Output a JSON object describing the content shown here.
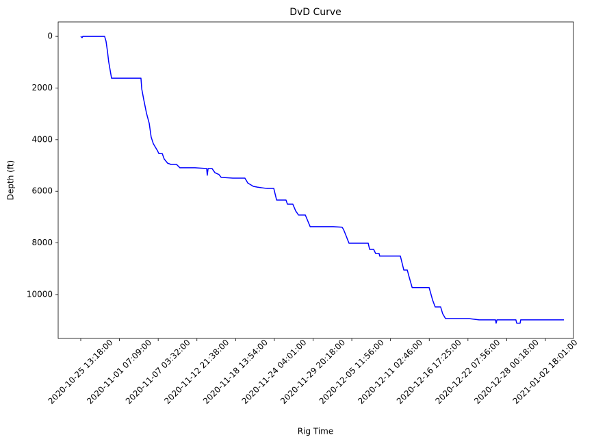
{
  "chart_data": {
    "type": "line",
    "title": "DvD Curve",
    "x_label": "Rig Time",
    "y_label": "Depth (ft)",
    "color": "#0000ff",
    "grid": false,
    "y_inverted": true,
    "x": [
      "2020-10-25 13:18",
      "2020-10-25 19:00",
      "2020-10-25 22:00",
      "2020-10-29 17:00",
      "2020-10-29 23:00",
      "2020-10-30 05:00",
      "2020-10-30 10:00",
      "2020-10-30 22:00",
      "2020-11-04 13:00",
      "2020-11-04 16:00",
      "2020-11-04 23:00",
      "2020-11-05 09:00",
      "2020-11-05 19:00",
      "2020-11-06 02:00",
      "2020-11-06 10:00",
      "2020-11-07 01:00",
      "2020-11-07 06:00",
      "2020-11-07 18:00",
      "2020-11-08 01:00",
      "2020-11-08 13:00",
      "2020-11-09 01:00",
      "2020-11-09 21:00",
      "2020-11-10 09:00",
      "2020-11-12 15:00",
      "2020-11-14 08:00",
      "2020-11-14 10:00",
      "2020-11-14 13:00",
      "2020-11-15 03:00",
      "2020-11-15 13:00",
      "2020-11-16 03:00",
      "2020-11-16 11:00",
      "2020-11-18 04:00",
      "2020-11-19 22:00",
      "2020-11-20 08:00",
      "2020-11-21 03:00",
      "2020-11-21 17:00",
      "2020-11-23 02:00",
      "2020-11-24 02:00",
      "2020-11-24 12:00",
      "2020-11-25 21:00",
      "2020-11-26 02:00",
      "2020-11-26 21:00",
      "2020-11-27 07:00",
      "2020-11-27 17:00",
      "2020-11-28 17:00",
      "2020-11-29 10:00",
      "2020-12-02 19:00",
      "2020-12-04 02:00",
      "2020-12-04 07:00",
      "2020-12-04 14:00",
      "2020-12-05 02:00",
      "2020-12-07 21:00",
      "2020-12-08 02:00",
      "2020-12-08 16:00",
      "2020-12-08 23:00",
      "2020-12-09 11:00",
      "2020-12-09 13:00",
      "2020-12-12 13:00",
      "2020-12-13 01:00",
      "2020-12-13 13:00",
      "2020-12-13 20:00",
      "2020-12-14 06:00",
      "2020-12-16 17:00",
      "2020-12-17 05:00",
      "2020-12-17 14:00",
      "2020-12-18 09:00",
      "2020-12-18 16:00",
      "2020-12-19 02:00",
      "2020-12-22 11:00",
      "2020-12-23 23:00",
      "2020-12-26 09:00",
      "2020-12-26 11:00",
      "2020-12-26 14:00",
      "2020-12-29 09:00",
      "2020-12-29 12:00",
      "2020-12-30 00:00",
      "2020-12-30 02:00",
      "2021-01-05 12:00"
    ],
    "values": [
      0,
      50,
      0,
      0,
      190,
      580,
      980,
      1620,
      1620,
      2040,
      2440,
      2970,
      3370,
      3900,
      4160,
      4430,
      4540,
      4540,
      4750,
      4910,
      4960,
      4960,
      5090,
      5090,
      5120,
      5380,
      5120,
      5120,
      5280,
      5350,
      5460,
      5490,
      5490,
      5680,
      5810,
      5840,
      5890,
      5890,
      6340,
      6340,
      6500,
      6500,
      6760,
      6920,
      6920,
      7370,
      7370,
      7390,
      7480,
      7670,
      8010,
      8010,
      8250,
      8250,
      8410,
      8410,
      8510,
      8510,
      9050,
      9050,
      9340,
      9730,
      9730,
      10210,
      10480,
      10480,
      10740,
      10930,
      10930,
      10980,
      10980,
      11110,
      10980,
      10980,
      11110,
      11110,
      10980,
      10980
    ],
    "xlim": [
      "2020-10-21 15:00",
      "2021-01-06 22:00"
    ],
    "xticks": [
      "2020-10-25 13:18:00",
      "2020-11-01 07:09:00",
      "2020-11-07 03:32:00",
      "2020-11-12 21:38:00",
      "2020-11-18 13:54:00",
      "2020-11-24 04:01:00",
      "2020-11-29 20:18:00",
      "2020-12-05 11:56:00",
      "2020-12-11 02:46:00",
      "2020-12-16 17:25:00",
      "2020-12-22 07:56:00",
      "2020-12-28 00:18:00",
      "2021-01-02 18:01:00"
    ],
    "ylim": [
      11700,
      -560
    ],
    "yticks": [
      0,
      2000,
      4000,
      6000,
      8000,
      10000
    ]
  }
}
